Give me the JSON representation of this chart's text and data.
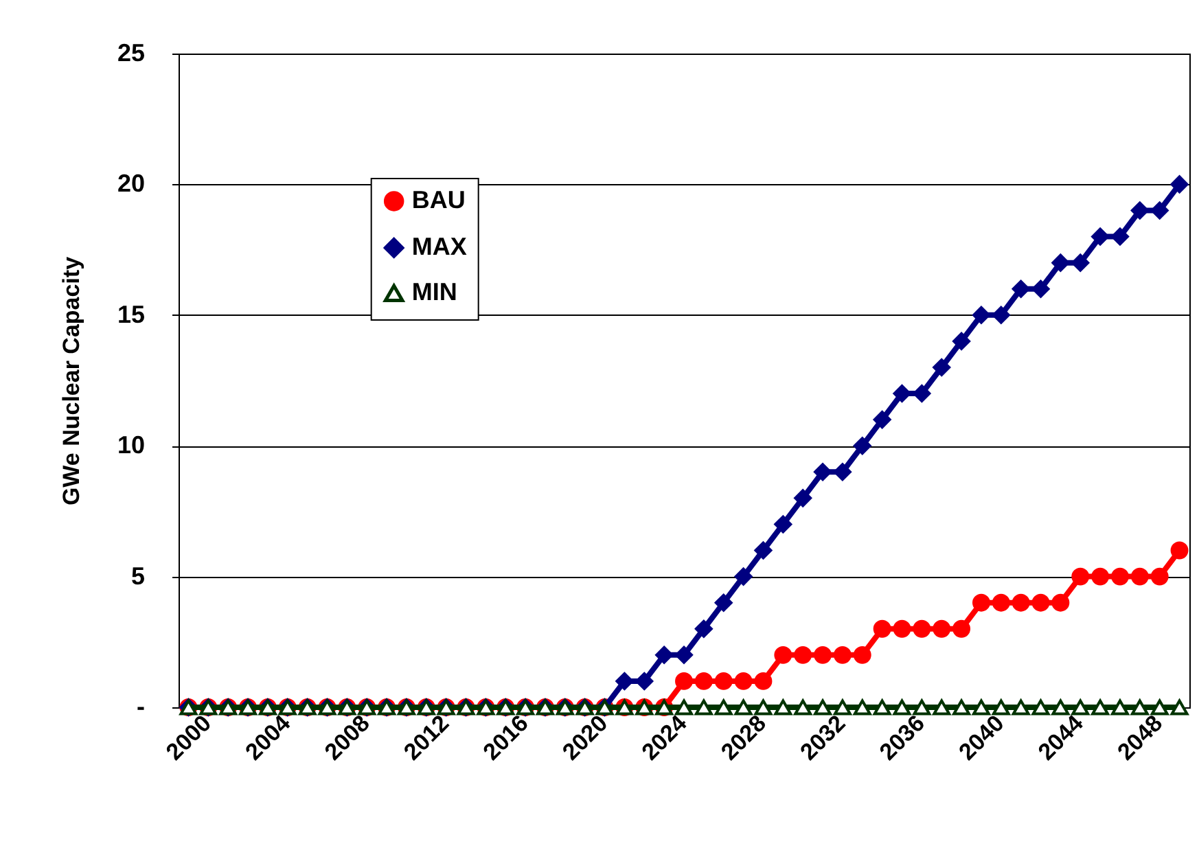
{
  "chart_data": {
    "type": "line",
    "ylabel": "GWe Nuclear Capacity",
    "categories": [
      "2000",
      null,
      null,
      null,
      "2004",
      null,
      null,
      null,
      "2008",
      null,
      null,
      null,
      "2012",
      null,
      null,
      null,
      "2016",
      null,
      null,
      null,
      "2020",
      null,
      null,
      null,
      "2024",
      null,
      null,
      null,
      "2028",
      null,
      null,
      null,
      "2032",
      null,
      null,
      null,
      "2036",
      null,
      null,
      null,
      "2040",
      null,
      null,
      null,
      "2044",
      null,
      null,
      null,
      "2048",
      null,
      null
    ],
    "series": [
      {
        "name": "BAU",
        "color": "#ff0000",
        "marker": "circle",
        "values": [
          0,
          0,
          0,
          0,
          0,
          0,
          0,
          0,
          0,
          0,
          0,
          0,
          0,
          0,
          0,
          0,
          0,
          0,
          0,
          0,
          0,
          0,
          0,
          0,
          0,
          1,
          1,
          1,
          1,
          1,
          2,
          2,
          2,
          2,
          2,
          3,
          3,
          3,
          3,
          3,
          4,
          4,
          4,
          4,
          4,
          5,
          5,
          5,
          5,
          5,
          6
        ]
      },
      {
        "name": "MAX",
        "color": "#000080",
        "marker": "diamond",
        "values": [
          0,
          0,
          0,
          0,
          0,
          0,
          0,
          0,
          0,
          0,
          0,
          0,
          0,
          0,
          0,
          0,
          0,
          0,
          0,
          0,
          0,
          0,
          1,
          1,
          2,
          2,
          3,
          4,
          5,
          6,
          7,
          8,
          9,
          9,
          10,
          11,
          12,
          12,
          13,
          14,
          15,
          15,
          16,
          16,
          17,
          17,
          18,
          18,
          19,
          19,
          20
        ]
      },
      {
        "name": "MIN",
        "color": "#003300",
        "marker": "triangle",
        "values": [
          0,
          0,
          0,
          0,
          0,
          0,
          0,
          0,
          0,
          0,
          0,
          0,
          0,
          0,
          0,
          0,
          0,
          0,
          0,
          0,
          0,
          0,
          0,
          0,
          0,
          0,
          0,
          0,
          0,
          0,
          0,
          0,
          0,
          0,
          0,
          0,
          0,
          0,
          0,
          0,
          0,
          0,
          0,
          0,
          0,
          0,
          0,
          0,
          0,
          0,
          0
        ]
      }
    ],
    "ylim": [
      0,
      25
    ],
    "yticks": [
      {
        "value": 0,
        "label": "-"
      },
      5,
      10,
      15,
      20,
      25
    ],
    "grid": "y",
    "legend": "top left"
  }
}
